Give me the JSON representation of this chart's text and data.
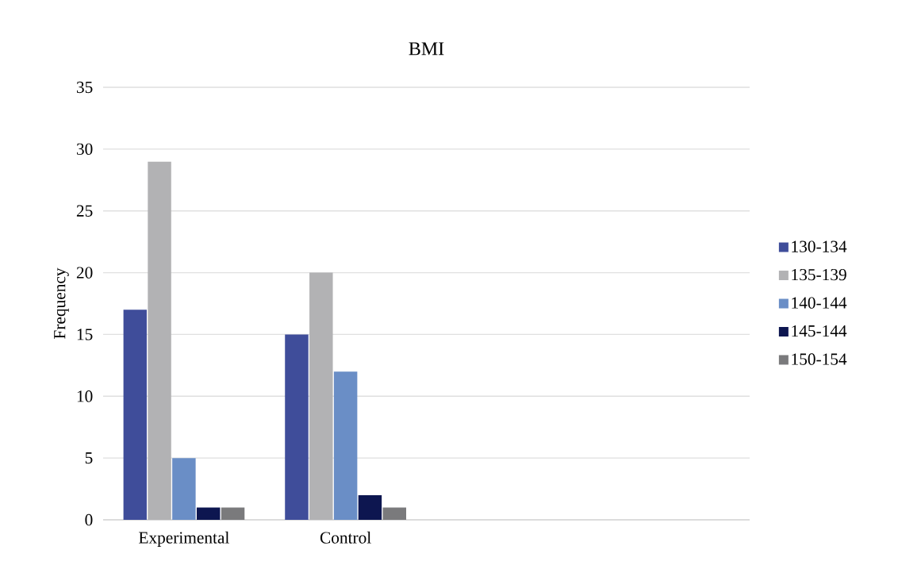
{
  "chart_data": {
    "type": "bar",
    "title": "BMI",
    "ylabel": "Frequency",
    "categories": [
      "Experimental",
      "Control",
      null,
      null
    ],
    "series": [
      {
        "name": "130-134",
        "color": "#3f4d9a",
        "values": [
          17,
          15,
          null,
          null
        ]
      },
      {
        "name": "135-139",
        "color": "#b2b2b4",
        "values": [
          29,
          20,
          null,
          null
        ]
      },
      {
        "name": "140-144",
        "color": "#6a8ec6",
        "values": [
          5,
          12,
          null,
          null
        ]
      },
      {
        "name": "145-144",
        "color": "#0d1650",
        "values": [
          1,
          2,
          null,
          null
        ]
      },
      {
        "name": "150-154",
        "color": "#7a7a7c",
        "values": [
          1,
          1,
          null,
          null
        ]
      }
    ],
    "ylim": [
      0,
      35
    ],
    "yticks": [
      0,
      5,
      10,
      15,
      20,
      25,
      30,
      35
    ],
    "grid": "y",
    "legend": "right"
  }
}
